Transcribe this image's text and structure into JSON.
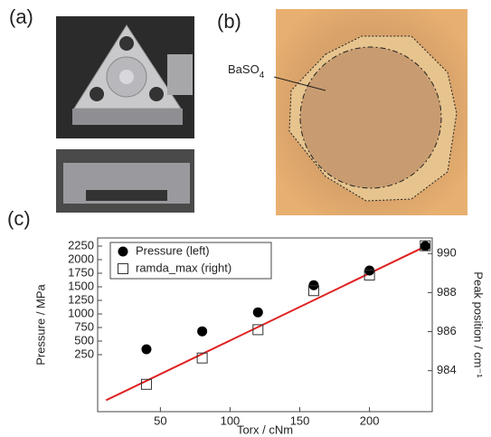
{
  "panels": {
    "a": "(a)",
    "b": "(b)",
    "c": "(c)"
  },
  "photo_b": {
    "label": "BaSO",
    "label_sub": "4"
  },
  "chart_data": {
    "type": "scatter",
    "xlabel": "Torx / cNm",
    "ylabel": "Pressure / MPa",
    "y2label": "Peak position / cm⁻¹",
    "x": [
      40,
      80,
      120,
      160,
      200,
      240
    ],
    "series": [
      {
        "name": "Pressure (left)",
        "color": "#000000",
        "marker": "filled-circle",
        "values": [
          350,
          680,
          1030,
          1530,
          1800,
          2250
        ]
      },
      {
        "name": "ramda_max (right)",
        "color": "#333333",
        "marker": "open-square",
        "axis": "y2",
        "values": [
          983.3,
          984.65,
          986.1,
          988.1,
          988.9,
          990.4
        ]
      }
    ],
    "fit_line": {
      "color": "#e02020",
      "x": [
        11,
        243
      ],
      "values": [
        -590,
        2280
      ]
    },
    "xlim": [
      5,
      245
    ],
    "xticks": [
      50,
      100,
      150,
      200
    ],
    "ylim": [
      -800,
      2400
    ],
    "yticks": [
      250,
      500,
      750,
      1000,
      1250,
      1500,
      1750,
      2000,
      2250
    ],
    "y2lim": [
      981.9,
      990.8
    ],
    "y2ticks": [
      984,
      986,
      988,
      990
    ],
    "legend": "top-left"
  }
}
